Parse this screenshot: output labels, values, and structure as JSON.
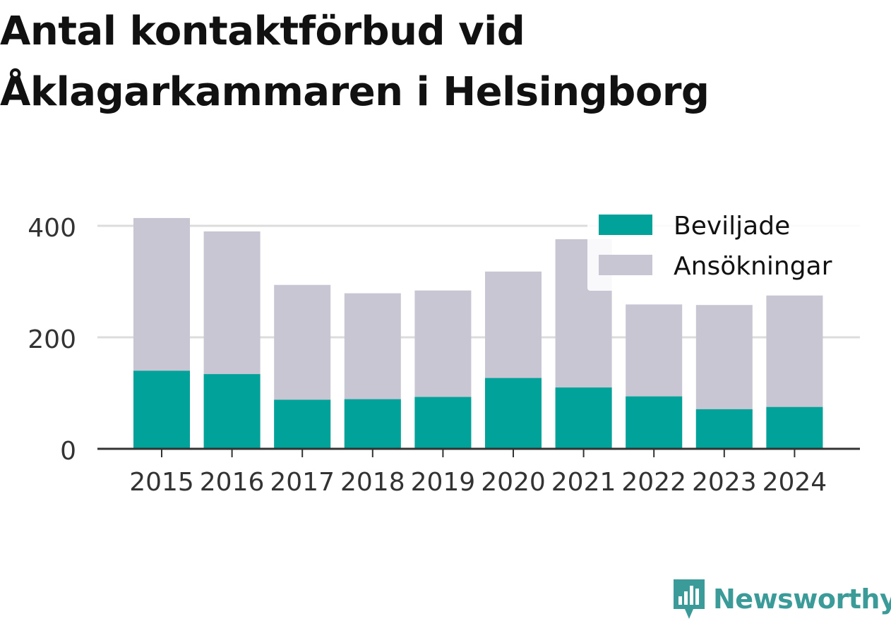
{
  "title_lines": [
    "Antal kontaktförbud vid",
    "Åklagarkammaren i Helsingborg"
  ],
  "brand": {
    "name": "Newsworthy",
    "icon": "newsworthy-bar-chart-icon",
    "color": "#3b9b98"
  },
  "chart_data": {
    "type": "bar",
    "stacked": false,
    "overlay": true,
    "categories": [
      "2015",
      "2016",
      "2017",
      "2018",
      "2019",
      "2020",
      "2021",
      "2022",
      "2023",
      "2024"
    ],
    "series": [
      {
        "name": "Beviljade",
        "color": "#00a29a",
        "values": [
          140,
          134,
          88,
          89,
          93,
          127,
          110,
          94,
          71,
          75
        ]
      },
      {
        "name": "Ansökningar",
        "color": "#c8c6d2",
        "values": [
          414,
          390,
          294,
          279,
          284,
          318,
          376,
          259,
          258,
          275
        ]
      }
    ],
    "yticks": [
      0,
      200,
      400
    ],
    "ylim": [
      0,
      420
    ],
    "grid": true,
    "legend_position": "top-right",
    "xlabel": "",
    "ylabel": ""
  }
}
